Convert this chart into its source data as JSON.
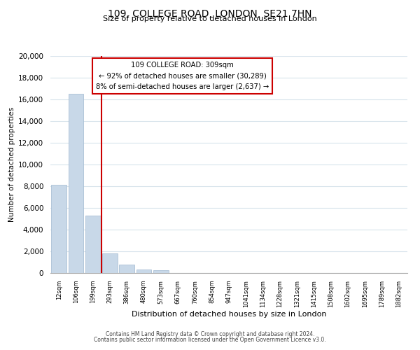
{
  "title": "109, COLLEGE ROAD, LONDON, SE21 7HN",
  "subtitle": "Size of property relative to detached houses in London",
  "xlabel": "Distribution of detached houses by size in London",
  "ylabel": "Number of detached properties",
  "bar_labels": [
    "12sqm",
    "106sqm",
    "199sqm",
    "293sqm",
    "386sqm",
    "480sqm",
    "573sqm",
    "667sqm",
    "760sqm",
    "854sqm",
    "947sqm",
    "1041sqm",
    "1134sqm",
    "1228sqm",
    "1321sqm",
    "1415sqm",
    "1508sqm",
    "1602sqm",
    "1695sqm",
    "1789sqm",
    "1882sqm"
  ],
  "bar_heights": [
    8100,
    16500,
    5300,
    1800,
    800,
    300,
    250,
    0,
    0,
    0,
    0,
    0,
    0,
    0,
    0,
    0,
    0,
    0,
    0,
    0,
    0
  ],
  "bar_color": "#c8d8e8",
  "bar_edge_color": "#a0b8d0",
  "vline_color": "#cc0000",
  "annotation_title": "109 COLLEGE ROAD: 309sqm",
  "annotation_line1": "← 92% of detached houses are smaller (30,289)",
  "annotation_line2": "8% of semi-detached houses are larger (2,637) →",
  "annotation_box_color": "#ffffff",
  "annotation_box_edge": "#cc0000",
  "ylim": [
    0,
    20000
  ],
  "yticks": [
    0,
    2000,
    4000,
    6000,
    8000,
    10000,
    12000,
    14000,
    16000,
    18000,
    20000
  ],
  "footnote1": "Contains HM Land Registry data © Crown copyright and database right 2024.",
  "footnote2": "Contains public sector information licensed under the Open Government Licence v3.0.",
  "background_color": "#ffffff",
  "grid_color": "#d8e4ec"
}
